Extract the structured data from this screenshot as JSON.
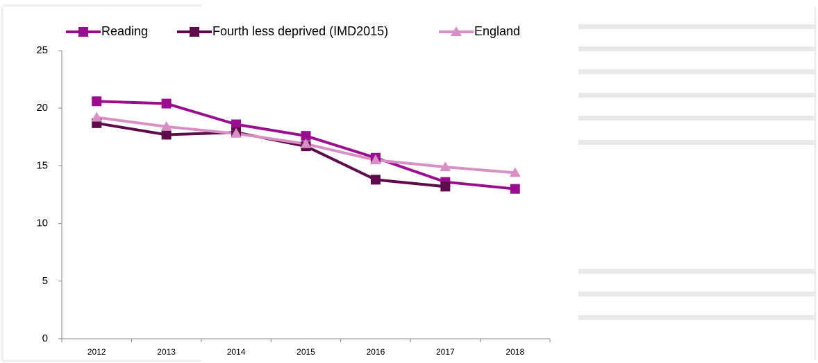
{
  "chart_data": {
    "type": "line",
    "categories": [
      "2012",
      "2013",
      "2014",
      "2015",
      "2016",
      "2017",
      "2018"
    ],
    "series": [
      {
        "name": "Reading",
        "color": "#9b0d8f",
        "marker": "square",
        "values": [
          20.6,
          20.4,
          18.6,
          17.6,
          15.7,
          13.6,
          13.0
        ]
      },
      {
        "name": "Fourth less deprived (IMD2015)",
        "color": "#5e0b4b",
        "marker": "square",
        "values": [
          18.7,
          17.7,
          17.9,
          16.7,
          13.8,
          13.2,
          null
        ]
      },
      {
        "name": "England",
        "color": "#d78fc4",
        "marker": "triangle",
        "values": [
          19.2,
          18.4,
          17.8,
          16.9,
          15.5,
          14.9,
          14.4
        ]
      }
    ],
    "ylim": [
      0,
      25
    ],
    "yticks": [
      0,
      5,
      10,
      15,
      20,
      25
    ],
    "grid": false,
    "legend": "top"
  }
}
